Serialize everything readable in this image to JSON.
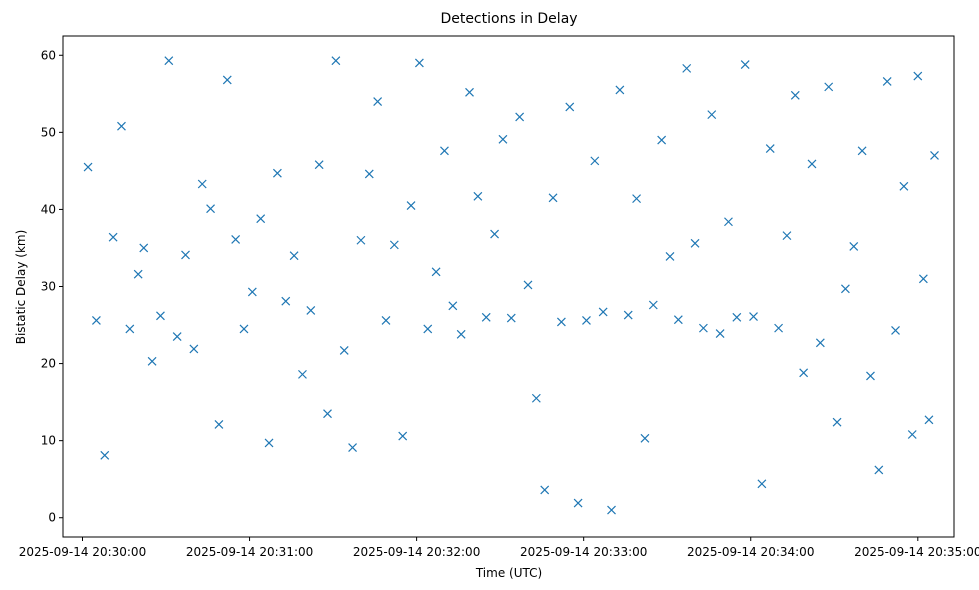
{
  "chart_data": {
    "type": "scatter",
    "title": "Detections in Delay",
    "xlabel": "Time (UTC)",
    "ylabel": "Bistatic Delay (km)",
    "marker": "x",
    "color": "#1f77b4",
    "grid": false,
    "xlim": [
      "2025-09-14 20:29:53",
      "2025-09-14 20:35:13"
    ],
    "ylim": [
      -2.5,
      62.5
    ],
    "x_ticks": [
      "2025-09-14 20:30:00",
      "2025-09-14 20:31:00",
      "2025-09-14 20:32:00",
      "2025-09-14 20:33:00",
      "2025-09-14 20:34:00",
      "2025-09-14 20:35:00"
    ],
    "y_ticks": [
      0,
      10,
      20,
      30,
      40,
      50,
      60
    ],
    "series": [
      {
        "x": [
          "2025-09-14 20:30:02",
          "2025-09-14 20:30:05",
          "2025-09-14 20:30:08",
          "2025-09-14 20:30:11",
          "2025-09-14 20:30:14",
          "2025-09-14 20:30:17",
          "2025-09-14 20:30:20",
          "2025-09-14 20:30:22",
          "2025-09-14 20:30:25",
          "2025-09-14 20:30:28",
          "2025-09-14 20:30:31",
          "2025-09-14 20:30:34",
          "2025-09-14 20:30:37",
          "2025-09-14 20:30:40",
          "2025-09-14 20:30:43",
          "2025-09-14 20:30:46",
          "2025-09-14 20:30:49",
          "2025-09-14 20:30:52",
          "2025-09-14 20:30:55",
          "2025-09-14 20:30:58",
          "2025-09-14 20:31:01",
          "2025-09-14 20:31:04",
          "2025-09-14 20:31:07",
          "2025-09-14 20:31:10",
          "2025-09-14 20:31:13",
          "2025-09-14 20:31:16",
          "2025-09-14 20:31:19",
          "2025-09-14 20:31:22",
          "2025-09-14 20:31:25",
          "2025-09-14 20:31:28",
          "2025-09-14 20:31:31",
          "2025-09-14 20:31:34",
          "2025-09-14 20:31:37",
          "2025-09-14 20:31:40",
          "2025-09-14 20:31:43",
          "2025-09-14 20:31:46",
          "2025-09-14 20:31:49",
          "2025-09-14 20:31:52",
          "2025-09-14 20:31:55",
          "2025-09-14 20:31:58",
          "2025-09-14 20:32:01",
          "2025-09-14 20:32:04",
          "2025-09-14 20:32:07",
          "2025-09-14 20:32:10",
          "2025-09-14 20:32:13",
          "2025-09-14 20:32:16",
          "2025-09-14 20:32:19",
          "2025-09-14 20:32:22",
          "2025-09-14 20:32:25",
          "2025-09-14 20:32:28",
          "2025-09-14 20:32:31",
          "2025-09-14 20:32:34",
          "2025-09-14 20:32:37",
          "2025-09-14 20:32:40",
          "2025-09-14 20:32:43",
          "2025-09-14 20:32:46",
          "2025-09-14 20:32:49",
          "2025-09-14 20:32:52",
          "2025-09-14 20:32:55",
          "2025-09-14 20:32:58",
          "2025-09-14 20:33:01",
          "2025-09-14 20:33:04",
          "2025-09-14 20:33:07",
          "2025-09-14 20:33:10",
          "2025-09-14 20:33:13",
          "2025-09-14 20:33:16",
          "2025-09-14 20:33:19",
          "2025-09-14 20:33:22",
          "2025-09-14 20:33:25",
          "2025-09-14 20:33:28",
          "2025-09-14 20:33:31",
          "2025-09-14 20:33:34",
          "2025-09-14 20:33:37",
          "2025-09-14 20:33:40",
          "2025-09-14 20:33:43",
          "2025-09-14 20:33:46",
          "2025-09-14 20:33:49",
          "2025-09-14 20:33:52",
          "2025-09-14 20:33:55",
          "2025-09-14 20:33:58",
          "2025-09-14 20:34:01",
          "2025-09-14 20:34:04",
          "2025-09-14 20:34:07",
          "2025-09-14 20:34:10",
          "2025-09-14 20:34:13",
          "2025-09-14 20:34:16",
          "2025-09-14 20:34:19",
          "2025-09-14 20:34:22",
          "2025-09-14 20:34:25",
          "2025-09-14 20:34:28",
          "2025-09-14 20:34:31",
          "2025-09-14 20:34:34",
          "2025-09-14 20:34:37",
          "2025-09-14 20:34:40",
          "2025-09-14 20:34:43",
          "2025-09-14 20:34:46",
          "2025-09-14 20:34:49",
          "2025-09-14 20:34:52",
          "2025-09-14 20:34:55",
          "2025-09-14 20:34:58",
          "2025-09-14 20:35:00",
          "2025-09-14 20:35:02",
          "2025-09-14 20:35:04",
          "2025-09-14 20:35:06"
        ],
        "y": [
          45.5,
          25.6,
          8.1,
          36.4,
          50.8,
          24.5,
          31.6,
          35.0,
          20.3,
          26.2,
          59.3,
          23.5,
          34.1,
          21.9,
          43.3,
          40.1,
          12.1,
          56.8,
          36.1,
          24.5,
          29.3,
          38.8,
          9.7,
          44.7,
          28.1,
          34.0,
          18.6,
          26.9,
          45.8,
          13.5,
          59.3,
          21.7,
          9.1,
          36.0,
          44.6,
          54.0,
          25.6,
          35.4,
          10.6,
          40.5,
          59.0,
          24.5,
          31.9,
          47.6,
          27.5,
          23.8,
          55.2,
          41.7,
          26.0,
          36.8,
          49.1,
          25.9,
          52.0,
          30.2,
          15.5,
          3.6,
          41.5,
          25.4,
          53.3,
          1.9,
          25.6,
          46.3,
          26.7,
          1.0,
          55.5,
          26.3,
          41.4,
          10.3,
          27.6,
          49.0,
          33.9,
          25.7,
          58.3,
          35.6,
          24.6,
          52.3,
          23.9,
          38.4,
          26.0,
          58.8,
          26.1,
          4.4,
          47.9,
          24.6,
          36.6,
          54.8,
          18.8,
          45.9,
          22.7,
          55.9,
          12.4,
          29.7,
          35.2,
          47.6,
          18.4,
          6.2,
          56.6,
          24.3,
          43.0,
          10.8,
          57.3,
          31.0,
          12.7,
          47.0
        ]
      }
    ]
  }
}
